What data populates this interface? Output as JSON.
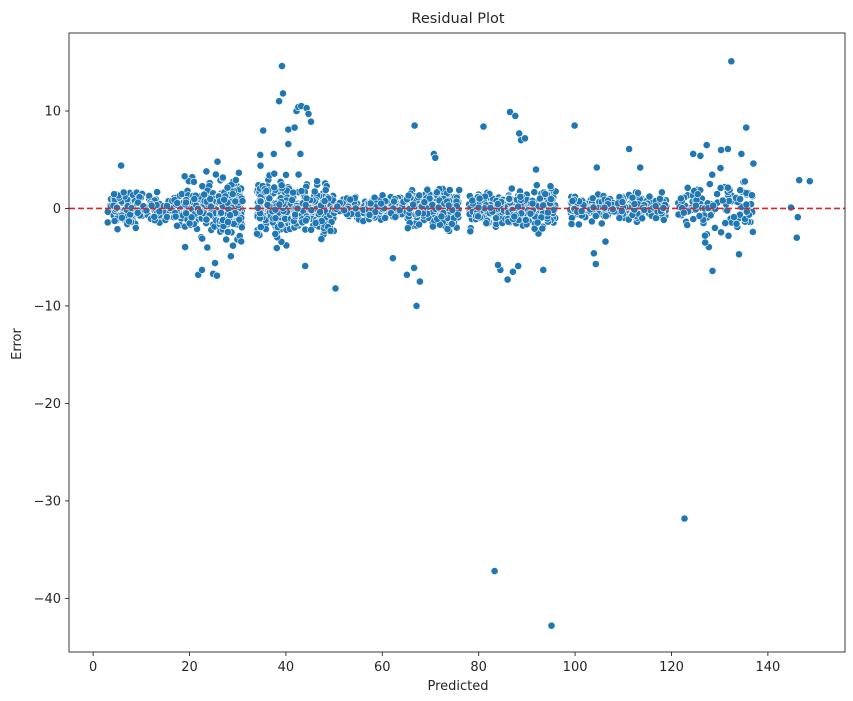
{
  "chart_data": {
    "type": "scatter",
    "title": "Residual Plot",
    "xlabel": "Predicted",
    "ylabel": "Error",
    "xlim": [
      -5,
      156
    ],
    "ylim": [
      -45.5,
      18
    ],
    "xticks": [
      0,
      20,
      40,
      60,
      80,
      100,
      120,
      140
    ],
    "yticks": [
      10,
      0,
      -10,
      -20,
      -30,
      -40
    ],
    "ytick_labels": [
      "10",
      "0",
      "−10",
      "−20",
      "−30",
      "−40"
    ],
    "reference_line": {
      "y": 0,
      "color": "#d62728",
      "style": "dashed"
    },
    "point_color": "#1f77b4",
    "grid": false,
    "clusters": [
      {
        "x_range": [
          3,
          9
        ],
        "spread": 1.6,
        "count": 90
      },
      {
        "x_range": [
          9,
          19
        ],
        "spread": 1.4,
        "count": 90
      },
      {
        "x_range": [
          19,
          26
        ],
        "spread": 2.2,
        "count": 110
      },
      {
        "x_range": [
          26,
          31
        ],
        "spread": 2.4,
        "count": 170
      },
      {
        "x_range": [
          34,
          41
        ],
        "spread": 2.6,
        "count": 230
      },
      {
        "x_range": [
          41,
          50
        ],
        "spread": 2.0,
        "count": 200
      },
      {
        "x_range": [
          50,
          57
        ],
        "spread": 0.9,
        "count": 80
      },
      {
        "x_range": [
          57,
          65
        ],
        "spread": 1.1,
        "count": 130
      },
      {
        "x_range": [
          65,
          76
        ],
        "spread": 1.6,
        "count": 230
      },
      {
        "x_range": [
          78,
          86
        ],
        "spread": 1.3,
        "count": 150
      },
      {
        "x_range": [
          86,
          96
        ],
        "spread": 1.6,
        "count": 200
      },
      {
        "x_range": [
          99,
          106
        ],
        "spread": 1.2,
        "count": 130
      },
      {
        "x_range": [
          106,
          119
        ],
        "spread": 1.2,
        "count": 200
      },
      {
        "x_range": [
          121,
          137
        ],
        "spread": 2.4,
        "count": 120
      }
    ],
    "outliers": [
      {
        "x": 83.3,
        "y": -37.2
      },
      {
        "x": 95.1,
        "y": -42.8
      },
      {
        "x": 122.7,
        "y": -31.8
      },
      {
        "x": 132.4,
        "y": 15.1
      },
      {
        "x": 39.2,
        "y": 14.6
      },
      {
        "x": 39.4,
        "y": 11.8
      },
      {
        "x": 38.6,
        "y": 11.0
      },
      {
        "x": 42.2,
        "y": 10.0
      },
      {
        "x": 42.6,
        "y": 10.4
      },
      {
        "x": 43.2,
        "y": 10.5
      },
      {
        "x": 44.3,
        "y": 10.3
      },
      {
        "x": 44.7,
        "y": 9.7
      },
      {
        "x": 45.2,
        "y": 8.9
      },
      {
        "x": 40.5,
        "y": 8.1
      },
      {
        "x": 41.8,
        "y": 8.3
      },
      {
        "x": 35.3,
        "y": 8.0
      },
      {
        "x": 66.7,
        "y": 8.5
      },
      {
        "x": 81.0,
        "y": 8.4
      },
      {
        "x": 86.5,
        "y": 9.9
      },
      {
        "x": 87.6,
        "y": 9.5
      },
      {
        "x": 88.4,
        "y": 7.7
      },
      {
        "x": 88.8,
        "y": 7.0
      },
      {
        "x": 89.6,
        "y": 7.2
      },
      {
        "x": 99.9,
        "y": 8.5
      },
      {
        "x": 135.5,
        "y": 8.3
      },
      {
        "x": 111.2,
        "y": 6.1
      },
      {
        "x": 127.3,
        "y": 6.5
      },
      {
        "x": 130.3,
        "y": 6.0
      },
      {
        "x": 131.7,
        "y": 6.1
      },
      {
        "x": 134.5,
        "y": 5.6
      },
      {
        "x": 40.5,
        "y": 6.6
      },
      {
        "x": 43.0,
        "y": 5.6
      },
      {
        "x": 37.5,
        "y": 5.6
      },
      {
        "x": 34.7,
        "y": 5.5
      },
      {
        "x": 50.3,
        "y": -8.2
      },
      {
        "x": 44.0,
        "y": -5.9
      },
      {
        "x": 67.1,
        "y": -10.0
      },
      {
        "x": 67.8,
        "y": -7.5
      },
      {
        "x": 65.1,
        "y": -6.8
      },
      {
        "x": 66.6,
        "y": -6.1
      },
      {
        "x": 62.2,
        "y": -5.1
      },
      {
        "x": 86.0,
        "y": -7.3
      },
      {
        "x": 84.5,
        "y": -6.3
      },
      {
        "x": 87.1,
        "y": -6.5
      },
      {
        "x": 88.2,
        "y": -5.9
      },
      {
        "x": 84.0,
        "y": -5.8
      },
      {
        "x": 93.4,
        "y": -6.3
      },
      {
        "x": 104.3,
        "y": -5.7
      },
      {
        "x": 128.5,
        "y": -6.4
      },
      {
        "x": 134.0,
        "y": -4.7
      },
      {
        "x": 144.8,
        "y": 0.1
      },
      {
        "x": 146.0,
        "y": -3.0
      },
      {
        "x": 146.2,
        "y": -0.9
      },
      {
        "x": 146.5,
        "y": 2.9
      },
      {
        "x": 148.7,
        "y": 2.8
      },
      {
        "x": 21.8,
        "y": -6.8
      },
      {
        "x": 22.6,
        "y": -6.3
      },
      {
        "x": 24.9,
        "y": -6.7
      },
      {
        "x": 25.7,
        "y": -6.9
      },
      {
        "x": 25.3,
        "y": -5.6
      },
      {
        "x": 23.7,
        "y": -4.0
      },
      {
        "x": 28.6,
        "y": -4.9
      },
      {
        "x": 5.8,
        "y": 4.4
      },
      {
        "x": 25.8,
        "y": 4.8
      },
      {
        "x": 23.5,
        "y": 3.8
      },
      {
        "x": 127.0,
        "y": -3.5
      },
      {
        "x": 136.9,
        "y": -2.4
      },
      {
        "x": 124.5,
        "y": 5.6
      },
      {
        "x": 70.7,
        "y": 5.6
      },
      {
        "x": 71.0,
        "y": 5.2
      },
      {
        "x": 103.9,
        "y": -4.6
      },
      {
        "x": 106.3,
        "y": -3.4
      },
      {
        "x": 137.0,
        "y": 4.6
      },
      {
        "x": 126.0,
        "y": 5.4
      },
      {
        "x": 113.5,
        "y": 4.2
      },
      {
        "x": 104.5,
        "y": 4.2
      },
      {
        "x": 91.9,
        "y": 4.0
      }
    ]
  }
}
